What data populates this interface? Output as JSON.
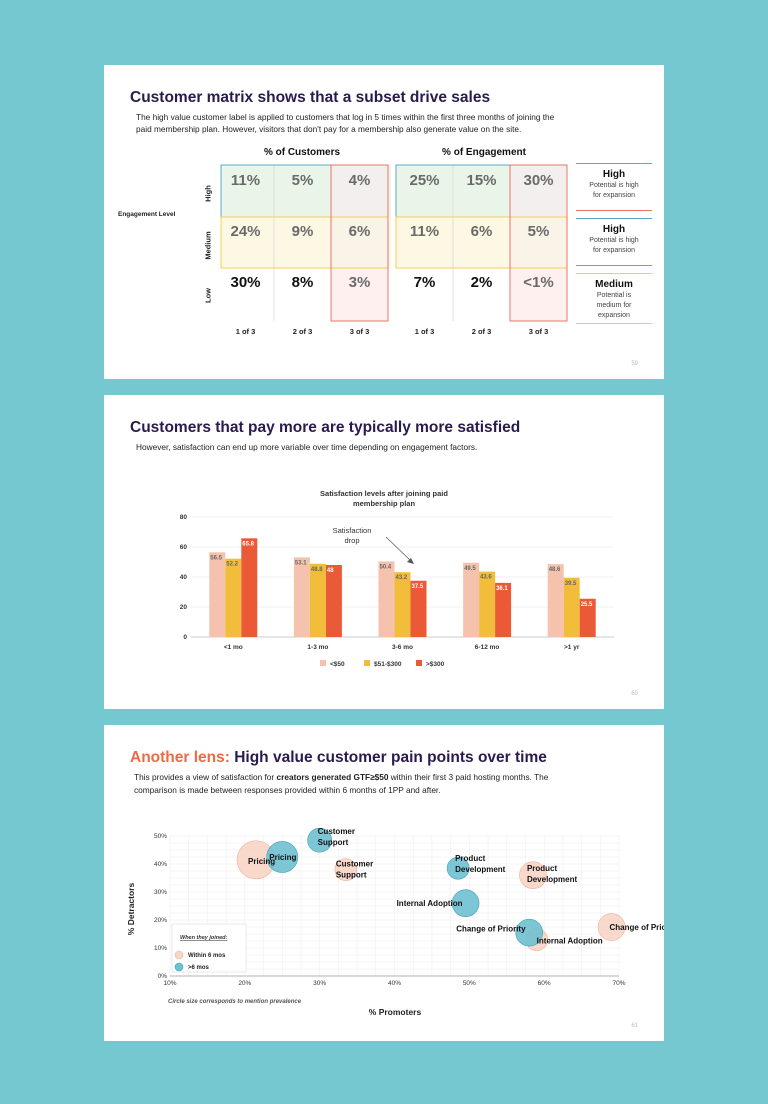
{
  "slide1": {
    "title": "Customer matrix shows that a subset drive sales",
    "subtitle_line1": "The high value customer label is applied to customers that log in 5 times within the first three months of joining the",
    "subtitle_line2": "paid membership plan. However, visitors that don't pay for a membership also generate value on the site.",
    "matrix_customers_title": "% of Customers",
    "matrix_engagement_title": "% of Engagement",
    "engagement_axis_label": "Engagement Level",
    "row_labels": [
      "High",
      "Medium",
      "Low"
    ],
    "col_labels": [
      "1 of 3",
      "2 of 3",
      "3 of 3",
      "1 of 3",
      "2 of 3",
      "3 of 3"
    ],
    "customers": [
      [
        "11%",
        "5%",
        "4%"
      ],
      [
        "24%",
        "9%",
        "6%"
      ],
      [
        "30%",
        "8%",
        "3%"
      ]
    ],
    "engagement": [
      [
        "25%",
        "15%",
        "30%"
      ],
      [
        "11%",
        "6%",
        "5%"
      ],
      [
        "7%",
        "2%",
        "<1%"
      ]
    ],
    "legend": [
      {
        "title": "High",
        "desc_line1": "Potential is high",
        "desc_line2": "for expansion",
        "desc_line3": "",
        "color": "#e8746a"
      },
      {
        "title": "High",
        "desc_line1": "Potential is high",
        "desc_line2": "for expansion",
        "desc_line3": "",
        "color": "#5aa9c6"
      },
      {
        "title": "Medium",
        "desc_line1": "Potential is",
        "desc_line2": "medium for",
        "desc_line3": "expansion",
        "color": "#f2cf57"
      }
    ],
    "page_number": "59"
  },
  "slide2": {
    "title": "Customers that pay more are typically more satisfied",
    "subtitle": "However, satisfaction can end up more variable over time depending on engagement factors.",
    "page_number": "60",
    "annotation_line1": "Satisfaction",
    "annotation_line2": "drop",
    "chart_data": {
      "type": "bar",
      "title_line1": "Satisfaction levels after joining paid",
      "title_line2": "membership plan",
      "categories": [
        "<1 mo",
        "1-3 mo",
        "3-6 mo",
        "6-12 mo",
        ">1 yr"
      ],
      "series": [
        {
          "name": "<$50",
          "color": "#f5c2ae",
          "values": [
            56.5,
            53.1,
            50.4,
            49.5,
            48.6
          ]
        },
        {
          "name": "$51-$300",
          "color": "#f2bd3a",
          "values": [
            52.2,
            48.8,
            43.2,
            43.6,
            39.5
          ]
        },
        {
          "name": ">$300",
          "color": "#ea5a37",
          "values": [
            65.8,
            48,
            37.5,
            36.1,
            25.5
          ]
        }
      ],
      "ylim": [
        0,
        80
      ],
      "yticks": [
        "0",
        "20",
        "40",
        "60",
        "80"
      ],
      "xlabel": "",
      "ylabel": ""
    }
  },
  "slide3": {
    "title_accent": "Another lens:",
    "title_rest": " High value customer pain points over time",
    "subtitle_pre": "This provides a view of satisfaction for ",
    "subtitle_bold": "creators generated GTF≥$50",
    "subtitle_post": " within their first 3 paid hosting months. The",
    "subtitle_line2": "comparison is made between responses provided within 6 months of 1PP and after.",
    "legend_title": "When they joined:",
    "legend_within": "Within 6 mos",
    "legend_after": ">6 mos",
    "footnote": "Circle size corresponds to mention prevalence",
    "page_number": "61",
    "chart_data": {
      "type": "scatter",
      "xlabel": "% Promoters",
      "ylabel": "% Detractors",
      "xlim": [
        10,
        70
      ],
      "ylim": [
        0,
        50
      ],
      "xticks": [
        "10%",
        "20%",
        "30%",
        "40%",
        "50%",
        "60%",
        "70%"
      ],
      "yticks": [
        "0%",
        "10%",
        "20%",
        "30%",
        "40%",
        "50%"
      ],
      "series": [
        {
          "name": "Within 6 mos",
          "color": "#f8d5c5",
          "stroke": "#eeb39a",
          "points": [
            {
              "label": "Pricing",
              "x": 21.5,
              "y": 41.5,
              "size": 3
            },
            {
              "label": "Customer Support",
              "x": 33.5,
              "y": 38,
              "size": 1
            },
            {
              "label": "Product Development",
              "x": 58.5,
              "y": 36,
              "size": 1.5
            },
            {
              "label": "Change of Priority",
              "x": 69,
              "y": 17.5,
              "size": 1.5
            },
            {
              "label": "Internal Adoption",
              "x": 59,
              "y": 13,
              "size": 1
            }
          ]
        },
        {
          "name": ">6 mos",
          "color": "#6fc0d0",
          "stroke": "#3fa2b8",
          "points": [
            {
              "label": "Pricing",
              "x": 25,
              "y": 42.5,
              "size": 2
            },
            {
              "label": "Customer Support",
              "x": 30,
              "y": 48.5,
              "size": 1.2
            },
            {
              "label": "Product Development",
              "x": 48.5,
              "y": 38.5,
              "size": 1
            },
            {
              "label": "Internal Adoption",
              "x": 49.5,
              "y": 26,
              "size": 1.5
            },
            {
              "label": "Change of Priority",
              "x": 58,
              "y": 15.5,
              "size": 1.5
            }
          ]
        }
      ]
    }
  }
}
